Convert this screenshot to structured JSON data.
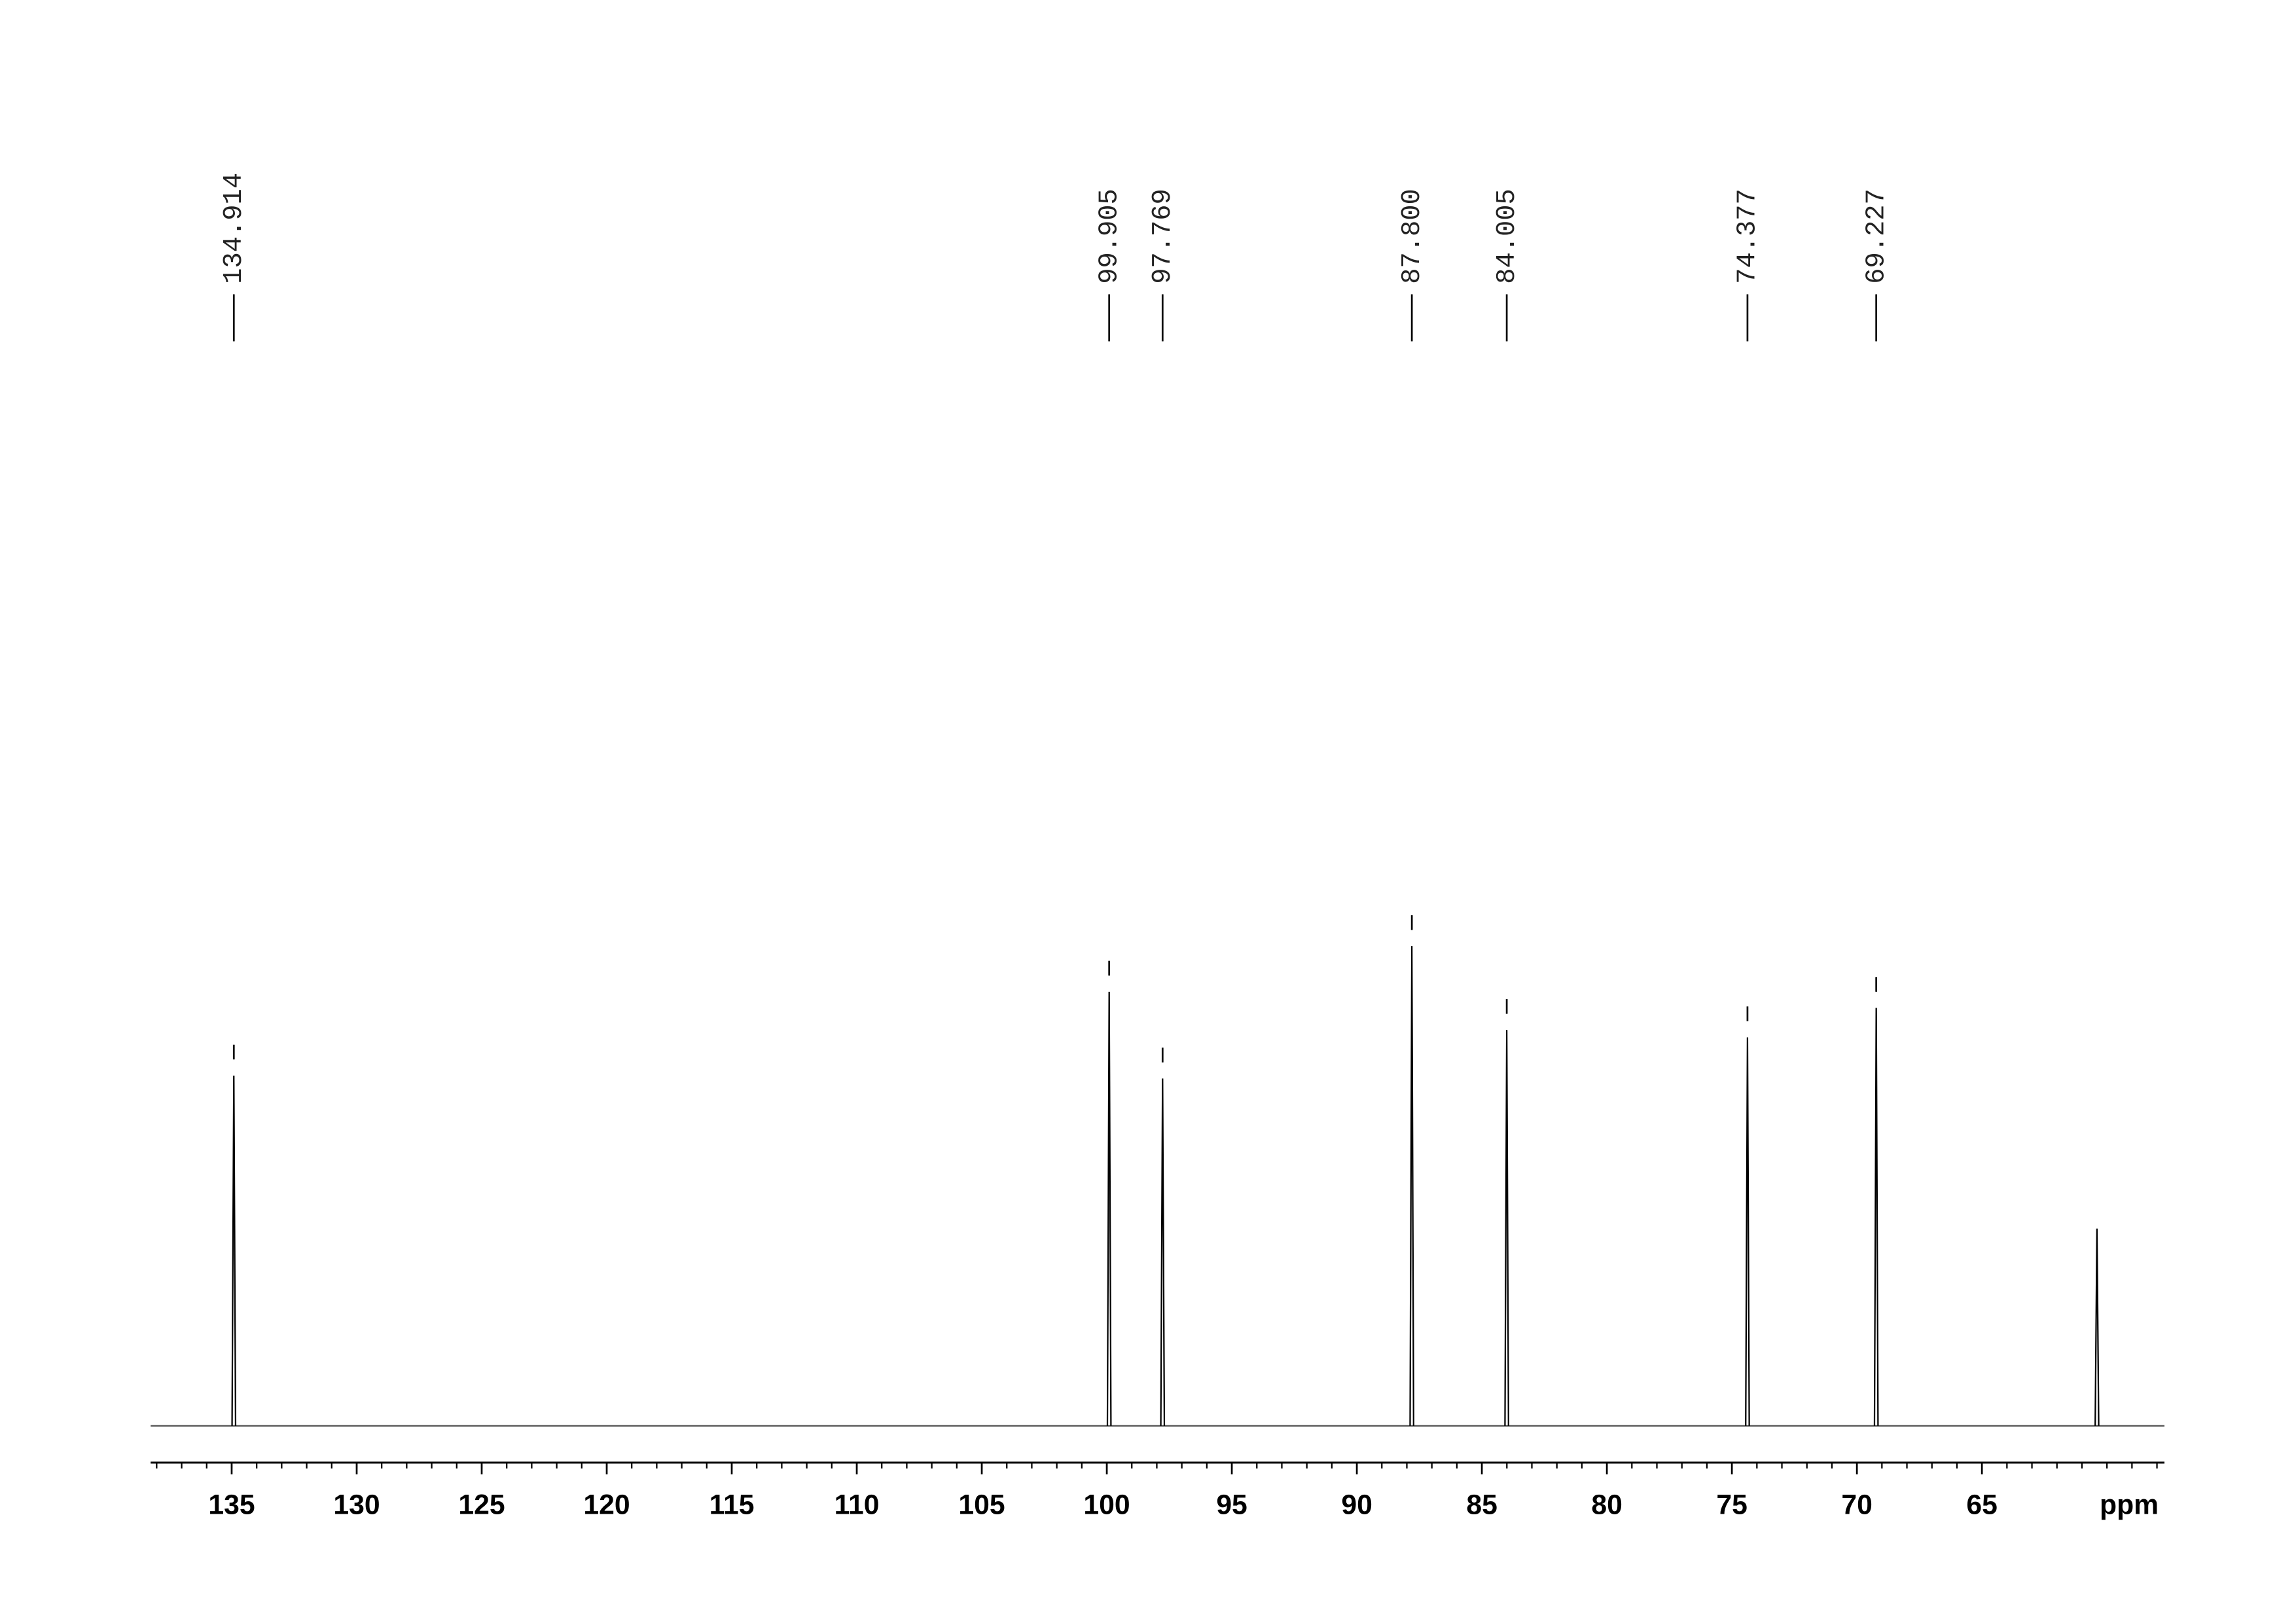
{
  "chart_data": {
    "type": "spectrum",
    "x": [
      134.914,
      99.905,
      97.769,
      87.8,
      84.005,
      74.377,
      69.227,
      60.4
    ],
    "values": [
      238,
      295,
      236,
      326,
      269,
      264,
      284,
      134
    ],
    "value_labels": [
      "134.914",
      "99.905",
      "97.769",
      "87.800",
      "84.005",
      "74.377",
      "69.227",
      null
    ],
    "xlabel": "ppm",
    "xlim": [
      138.24,
      57.7
    ],
    "xticks": [
      135,
      130,
      125,
      120,
      115,
      110,
      105,
      100,
      95,
      90,
      85,
      80,
      75,
      70,
      65
    ],
    "xminorticks": [
      58,
      59,
      60,
      61,
      62,
      63,
      64,
      65,
      66,
      67,
      68,
      69,
      70,
      71,
      72,
      73,
      74,
      75,
      76,
      77,
      78,
      79,
      80,
      81,
      82,
      83,
      84,
      85,
      86,
      87,
      88,
      89,
      90,
      91,
      92,
      93,
      94,
      95,
      96,
      97,
      98,
      99,
      100,
      101,
      102,
      103,
      104,
      105,
      106,
      107,
      108,
      109,
      110,
      111,
      112,
      113,
      114,
      115,
      116,
      117,
      118,
      119,
      120,
      121,
      122,
      123,
      124,
      125,
      126,
      127,
      128,
      129,
      130,
      131,
      132,
      133,
      134,
      135,
      136,
      137,
      138
    ],
    "ylim": [
      0,
      870
    ],
    "color": "#000000"
  }
}
